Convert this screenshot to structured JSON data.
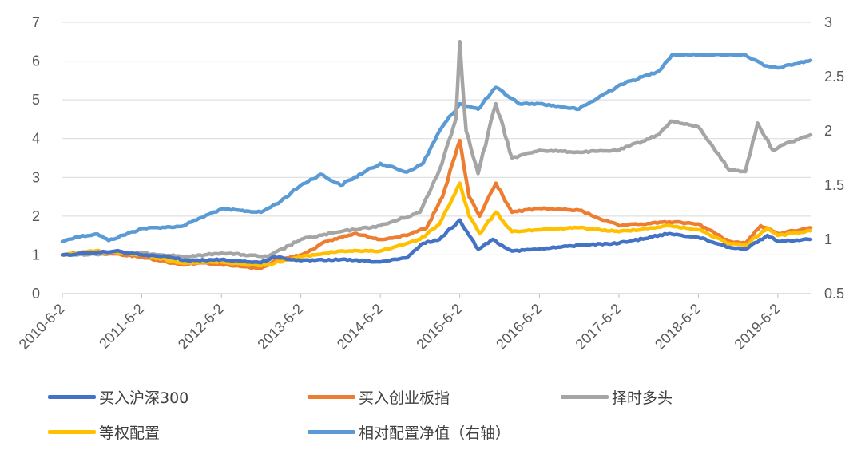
{
  "chart_data": {
    "type": "line",
    "x_start": "2010-6-2",
    "x_end": "2019-10-31",
    "x_tick_labels": [
      "2010-6-2",
      "2011-6-2",
      "2012-6-2",
      "2013-6-2",
      "2014-6-2",
      "2015-6-2",
      "2016-6-2",
      "2017-6-2",
      "2018-6-2",
      "2019-6-2"
    ],
    "y_left": {
      "min": 0,
      "max": 7,
      "ticks": [
        "0",
        "1",
        "2",
        "3",
        "4",
        "5",
        "6",
        "7"
      ]
    },
    "y_right": {
      "min": 0.5,
      "max": 3,
      "ticks": [
        "0.5",
        "1",
        "1.5",
        "2",
        "2.5",
        "3"
      ]
    },
    "grid": "horizontal",
    "legend_position": "bottom",
    "series": [
      {
        "name": "买入沪深300",
        "color": "#4472C4",
        "axis": "left",
        "points": [
          [
            "2010-6-2",
            1.0
          ],
          [
            "2010-10-1",
            1.04
          ],
          [
            "2011-2-1",
            1.1
          ],
          [
            "2011-6-2",
            1.0
          ],
          [
            "2011-10-1",
            0.95
          ],
          [
            "2012-1-1",
            0.85
          ],
          [
            "2012-6-2",
            0.88
          ],
          [
            "2012-12-1",
            0.8
          ],
          [
            "2013-2-1",
            0.95
          ],
          [
            "2013-6-2",
            0.85
          ],
          [
            "2013-12-1",
            0.88
          ],
          [
            "2014-6-2",
            0.82
          ],
          [
            "2014-10-1",
            0.92
          ],
          [
            "2014-12-15",
            1.3
          ],
          [
            "2015-3-1",
            1.4
          ],
          [
            "2015-6-2",
            1.9
          ],
          [
            "2015-7-15",
            1.5
          ],
          [
            "2015-8-25",
            1.15
          ],
          [
            "2015-11-1",
            1.4
          ],
          [
            "2016-1-28",
            1.1
          ],
          [
            "2016-6-2",
            1.15
          ],
          [
            "2016-12-1",
            1.25
          ],
          [
            "2017-6-2",
            1.3
          ],
          [
            "2018-1-20",
            1.55
          ],
          [
            "2018-6-2",
            1.45
          ],
          [
            "2018-10-20",
            1.2
          ],
          [
            "2019-1-4",
            1.15
          ],
          [
            "2019-4-15",
            1.5
          ],
          [
            "2019-6-2",
            1.35
          ],
          [
            "2019-10-31",
            1.4
          ]
        ]
      },
      {
        "name": "买入创业板指",
        "color": "#ED7D31",
        "axis": "left",
        "points": [
          [
            "2010-6-2",
            1.0
          ],
          [
            "2010-11-1",
            1.1
          ],
          [
            "2011-6-2",
            0.95
          ],
          [
            "2011-12-1",
            0.75
          ],
          [
            "2012-3-1",
            0.8
          ],
          [
            "2012-6-2",
            0.75
          ],
          [
            "2012-12-1",
            0.65
          ],
          [
            "2013-2-1",
            0.85
          ],
          [
            "2013-6-2",
            1.0
          ],
          [
            "2013-10-1",
            1.35
          ],
          [
            "2014-2-1",
            1.55
          ],
          [
            "2014-6-2",
            1.4
          ],
          [
            "2014-10-1",
            1.5
          ],
          [
            "2015-1-1",
            1.7
          ],
          [
            "2015-3-15",
            2.5
          ],
          [
            "2015-6-2",
            3.95
          ],
          [
            "2015-7-15",
            2.5
          ],
          [
            "2015-9-1",
            2.0
          ],
          [
            "2015-11-15",
            2.85
          ],
          [
            "2016-1-28",
            2.1
          ],
          [
            "2016-6-2",
            2.2
          ],
          [
            "2016-12-1",
            2.15
          ],
          [
            "2017-6-2",
            1.75
          ],
          [
            "2018-1-20",
            1.85
          ],
          [
            "2018-6-2",
            1.8
          ],
          [
            "2018-10-20",
            1.35
          ],
          [
            "2019-1-4",
            1.3
          ],
          [
            "2019-3-15",
            1.75
          ],
          [
            "2019-6-2",
            1.55
          ],
          [
            "2019-10-31",
            1.7
          ]
        ]
      },
      {
        "name": "择时多头",
        "color": "#A5A5A5",
        "axis": "left",
        "points": [
          [
            "2010-6-2",
            1.0
          ],
          [
            "2011-6-2",
            1.05
          ],
          [
            "2012-1-1",
            0.95
          ],
          [
            "2012-6-2",
            1.05
          ],
          [
            "2013-1-1",
            0.95
          ],
          [
            "2013-6-2",
            1.4
          ],
          [
            "2013-12-1",
            1.6
          ],
          [
            "2014-6-2",
            1.75
          ],
          [
            "2014-12-1",
            2.1
          ],
          [
            "2015-3-1",
            3.2
          ],
          [
            "2015-5-15",
            4.5
          ],
          [
            "2015-6-2",
            6.5
          ],
          [
            "2015-7-1",
            4.2
          ],
          [
            "2015-8-25",
            3.1
          ],
          [
            "2015-11-15",
            4.9
          ],
          [
            "2016-1-28",
            3.5
          ],
          [
            "2016-6-2",
            3.7
          ],
          [
            "2016-12-1",
            3.65
          ],
          [
            "2017-6-2",
            3.7
          ],
          [
            "2017-12-1",
            4.1
          ],
          [
            "2018-1-26",
            4.45
          ],
          [
            "2018-6-2",
            4.3
          ],
          [
            "2018-8-1",
            3.85
          ],
          [
            "2018-10-20",
            3.2
          ],
          [
            "2019-1-4",
            3.15
          ],
          [
            "2019-3-1",
            4.4
          ],
          [
            "2019-5-10",
            3.7
          ],
          [
            "2019-7-1",
            3.85
          ],
          [
            "2019-10-31",
            4.1
          ]
        ]
      },
      {
        "name": "等权配置",
        "color": "#FFC000",
        "axis": "left",
        "points": [
          [
            "2010-6-2",
            1.0
          ],
          [
            "2010-11-1",
            1.1
          ],
          [
            "2011-6-2",
            1.0
          ],
          [
            "2011-12-1",
            0.8
          ],
          [
            "2012-6-2",
            0.82
          ],
          [
            "2012-12-1",
            0.72
          ],
          [
            "2013-6-2",
            0.95
          ],
          [
            "2013-12-1",
            1.1
          ],
          [
            "2014-6-2",
            1.1
          ],
          [
            "2014-12-1",
            1.4
          ],
          [
            "2015-3-1",
            1.8
          ],
          [
            "2015-6-2",
            2.85
          ],
          [
            "2015-7-15",
            2.0
          ],
          [
            "2015-9-1",
            1.55
          ],
          [
            "2015-11-15",
            2.1
          ],
          [
            "2016-1-28",
            1.6
          ],
          [
            "2016-6-2",
            1.65
          ],
          [
            "2016-12-1",
            1.7
          ],
          [
            "2017-6-2",
            1.6
          ],
          [
            "2018-1-20",
            1.75
          ],
          [
            "2018-6-2",
            1.65
          ],
          [
            "2018-10-20",
            1.3
          ],
          [
            "2019-1-4",
            1.25
          ],
          [
            "2019-4-15",
            1.7
          ],
          [
            "2019-6-2",
            1.5
          ],
          [
            "2019-10-31",
            1.62
          ]
        ]
      },
      {
        "name": "相对配置净值（右轴）",
        "color": "#5B9BD5",
        "axis": "right",
        "points": [
          [
            "2010-6-2",
            0.98
          ],
          [
            "2010-8-1",
            1.02
          ],
          [
            "2010-11-10",
            1.05
          ],
          [
            "2011-1-1",
            0.99
          ],
          [
            "2011-6-2",
            1.1
          ],
          [
            "2011-12-1",
            1.12
          ],
          [
            "2012-3-1",
            1.2
          ],
          [
            "2012-6-2",
            1.28
          ],
          [
            "2012-12-1",
            1.25
          ],
          [
            "2013-3-1",
            1.35
          ],
          [
            "2013-6-2",
            1.5
          ],
          [
            "2013-9-1",
            1.6
          ],
          [
            "2013-12-1",
            1.5
          ],
          [
            "2014-6-2",
            1.7
          ],
          [
            "2014-10-1",
            1.62
          ],
          [
            "2014-12-15",
            1.7
          ],
          [
            "2015-3-1",
            2.0
          ],
          [
            "2015-6-2",
            2.25
          ],
          [
            "2015-8-25",
            2.2
          ],
          [
            "2015-11-15",
            2.4
          ],
          [
            "2016-3-1",
            2.25
          ],
          [
            "2016-6-2",
            2.25
          ],
          [
            "2016-12-1",
            2.2
          ],
          [
            "2017-6-2",
            2.42
          ],
          [
            "2017-12-1",
            2.55
          ],
          [
            "2018-2-1",
            2.7
          ],
          [
            "2018-6-2",
            2.7
          ],
          [
            "2018-10-1",
            2.7
          ],
          [
            "2019-1-4",
            2.7
          ],
          [
            "2019-4-1",
            2.6
          ],
          [
            "2019-6-2",
            2.58
          ],
          [
            "2019-10-31",
            2.65
          ]
        ]
      }
    ]
  },
  "legend": [
    {
      "label": "买入沪深300",
      "color": "#4472C4"
    },
    {
      "label": "买入创业板指",
      "color": "#ED7D31"
    },
    {
      "label": "择时多头",
      "color": "#A5A5A5"
    },
    {
      "label": "等权配置",
      "color": "#FFC000"
    },
    {
      "label": "相对配置净值（右轴）",
      "color": "#5B9BD5"
    }
  ]
}
